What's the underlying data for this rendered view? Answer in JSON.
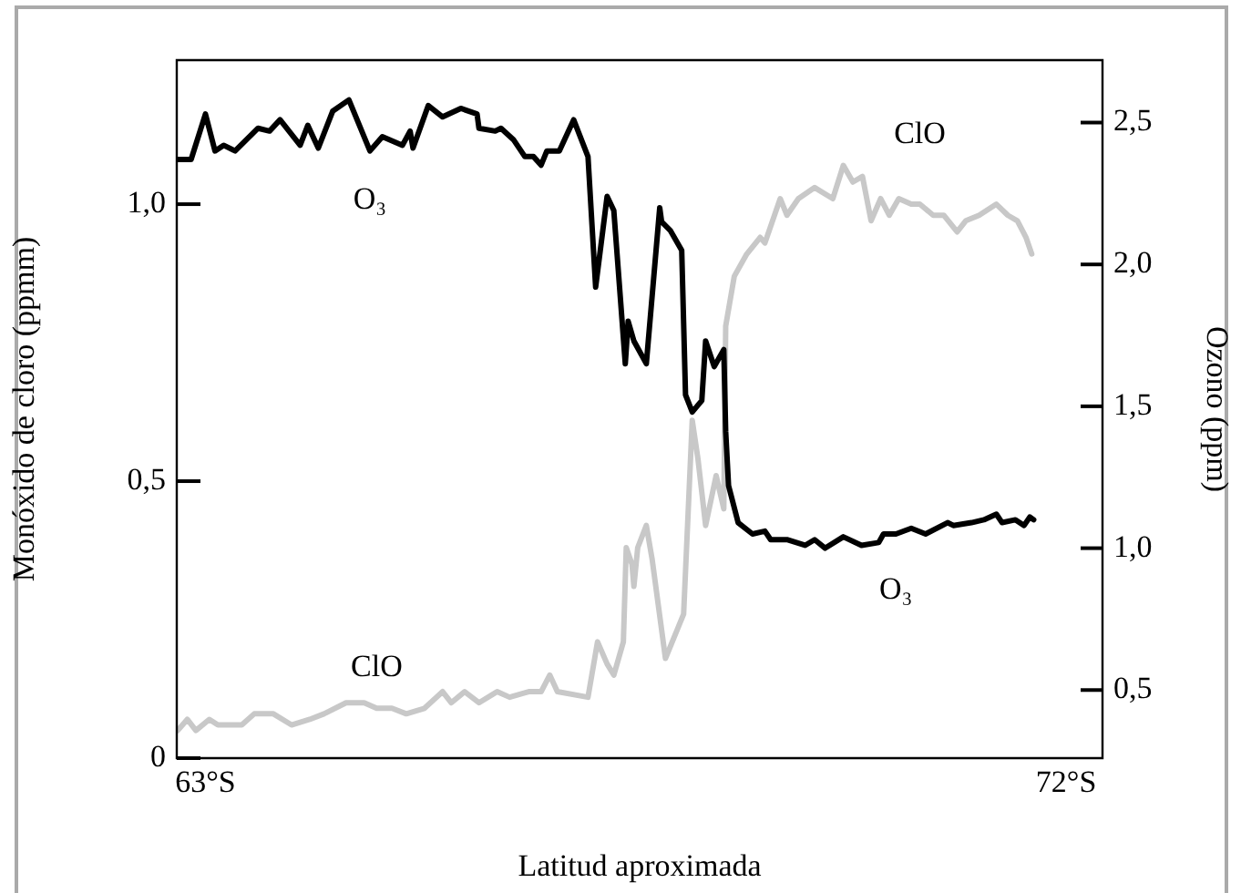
{
  "chart_data": {
    "type": "line",
    "xlabel": "Latitud aproximada",
    "ylabel": "Monóxido de cloro (ppmm)",
    "y2label": "Ozono (ppm)",
    "xlim": [
      62.7,
      72.38
    ],
    "xticks": [
      {
        "value": 63,
        "label": "63°S"
      },
      {
        "value": 72,
        "label": "72°S"
      }
    ],
    "ylim": [
      0,
      1.26
    ],
    "yticks": [
      0,
      {
        "value": 0.5,
        "label": "0,5"
      },
      {
        "value": 1,
        "label": "1,0"
      }
    ],
    "y2lim": [
      0.26,
      2.72
    ],
    "y2ticks": [
      {
        "value": 0.5,
        "label": "0,5"
      },
      {
        "value": 1,
        "label": "1,0"
      },
      {
        "value": 1.5,
        "label": "1,5"
      },
      {
        "value": 2,
        "label": "2,0"
      },
      {
        "value": 2.5,
        "label": "2,5"
      }
    ],
    "grid": false,
    "legend": false,
    "marker": "none",
    "line_style": "solid",
    "series": [
      {
        "name": "O₃",
        "color": "#000000",
        "axis": "y2",
        "x": [
          62.7,
          62.85,
          63.0,
          63.1,
          63.19,
          63.31,
          63.55,
          63.67,
          63.78,
          63.99,
          64.07,
          64.18,
          64.33,
          64.5,
          64.72,
          64.85,
          65.06,
          65.14,
          65.17,
          65.33,
          65.48,
          65.67,
          65.84,
          65.86,
          66.03,
          66.09,
          66.22,
          66.34,
          66.43,
          66.51,
          66.57,
          66.7,
          66.85,
          67.0,
          67.08,
          67.2,
          67.27,
          67.39,
          67.42,
          67.48,
          67.61,
          67.75,
          67.77,
          67.86,
          67.98,
          68.02,
          68.09,
          68.19,
          68.23,
          68.32,
          68.42,
          68.44,
          68.47,
          68.57,
          68.72,
          68.85,
          68.91,
          69.08,
          69.27,
          69.37,
          69.48,
          69.67,
          69.86,
          70.04,
          70.09,
          70.22,
          70.38,
          70.53,
          70.76,
          70.82,
          71.01,
          71.14,
          71.27,
          71.33,
          71.47,
          71.56,
          71.62,
          71.66
        ],
        "values": [
          2.37,
          2.37,
          2.53,
          2.4,
          2.42,
          2.4,
          2.48,
          2.47,
          2.51,
          2.42,
          2.49,
          2.41,
          2.54,
          2.58,
          2.4,
          2.45,
          2.42,
          2.47,
          2.41,
          2.56,
          2.52,
          2.55,
          2.53,
          2.48,
          2.47,
          2.48,
          2.44,
          2.38,
          2.38,
          2.35,
          2.4,
          2.4,
          2.51,
          2.38,
          1.92,
          2.24,
          2.19,
          1.65,
          1.8,
          1.73,
          1.65,
          2.2,
          2.15,
          2.12,
          2.05,
          1.54,
          1.48,
          1.52,
          1.73,
          1.64,
          1.7,
          1.41,
          1.22,
          1.09,
          1.05,
          1.06,
          1.03,
          1.03,
          1.01,
          1.03,
          1.0,
          1.04,
          1.01,
          1.02,
          1.05,
          1.05,
          1.07,
          1.05,
          1.09,
          1.08,
          1.09,
          1.1,
          1.12,
          1.09,
          1.1,
          1.08,
          1.11,
          1.1
        ]
      },
      {
        "name": "ClO",
        "color": "#c8c8c8",
        "axis": "y",
        "x": [
          62.71,
          62.81,
          62.9,
          63.04,
          63.13,
          63.27,
          63.38,
          63.51,
          63.71,
          63.9,
          64.09,
          64.24,
          64.47,
          64.66,
          64.79,
          64.95,
          65.1,
          65.29,
          65.48,
          65.57,
          65.71,
          65.86,
          66.05,
          66.18,
          66.38,
          66.51,
          66.6,
          66.68,
          67.0,
          67.1,
          67.2,
          67.27,
          67.37,
          67.4,
          67.46,
          67.48,
          67.52,
          67.61,
          67.67,
          67.81,
          68.0,
          68.09,
          68.15,
          68.23,
          68.34,
          68.42,
          68.44,
          68.53,
          68.66,
          68.8,
          68.85,
          69.01,
          69.08,
          69.2,
          69.37,
          69.56,
          69.67,
          69.77,
          69.87,
          69.96,
          70.06,
          70.15,
          70.25,
          70.38,
          70.47,
          70.61,
          70.72,
          70.86,
          70.95,
          71.09,
          71.27,
          71.39,
          71.49,
          71.58,
          71.64
        ],
        "values": [
          0.05,
          0.07,
          0.05,
          0.07,
          0.06,
          0.06,
          0.06,
          0.08,
          0.08,
          0.06,
          0.07,
          0.08,
          0.1,
          0.1,
          0.09,
          0.09,
          0.08,
          0.09,
          0.12,
          0.1,
          0.12,
          0.1,
          0.12,
          0.11,
          0.12,
          0.12,
          0.15,
          0.12,
          0.11,
          0.21,
          0.17,
          0.15,
          0.21,
          0.38,
          0.35,
          0.31,
          0.38,
          0.42,
          0.36,
          0.18,
          0.26,
          0.61,
          0.54,
          0.42,
          0.51,
          0.45,
          0.78,
          0.87,
          0.91,
          0.94,
          0.93,
          1.01,
          0.98,
          1.01,
          1.03,
          1.01,
          1.07,
          1.04,
          1.05,
          0.97,
          1.01,
          0.98,
          1.01,
          1.0,
          1.0,
          0.98,
          0.98,
          0.95,
          0.97,
          0.98,
          1.0,
          0.98,
          0.97,
          0.94,
          0.91
        ]
      }
    ]
  }
}
